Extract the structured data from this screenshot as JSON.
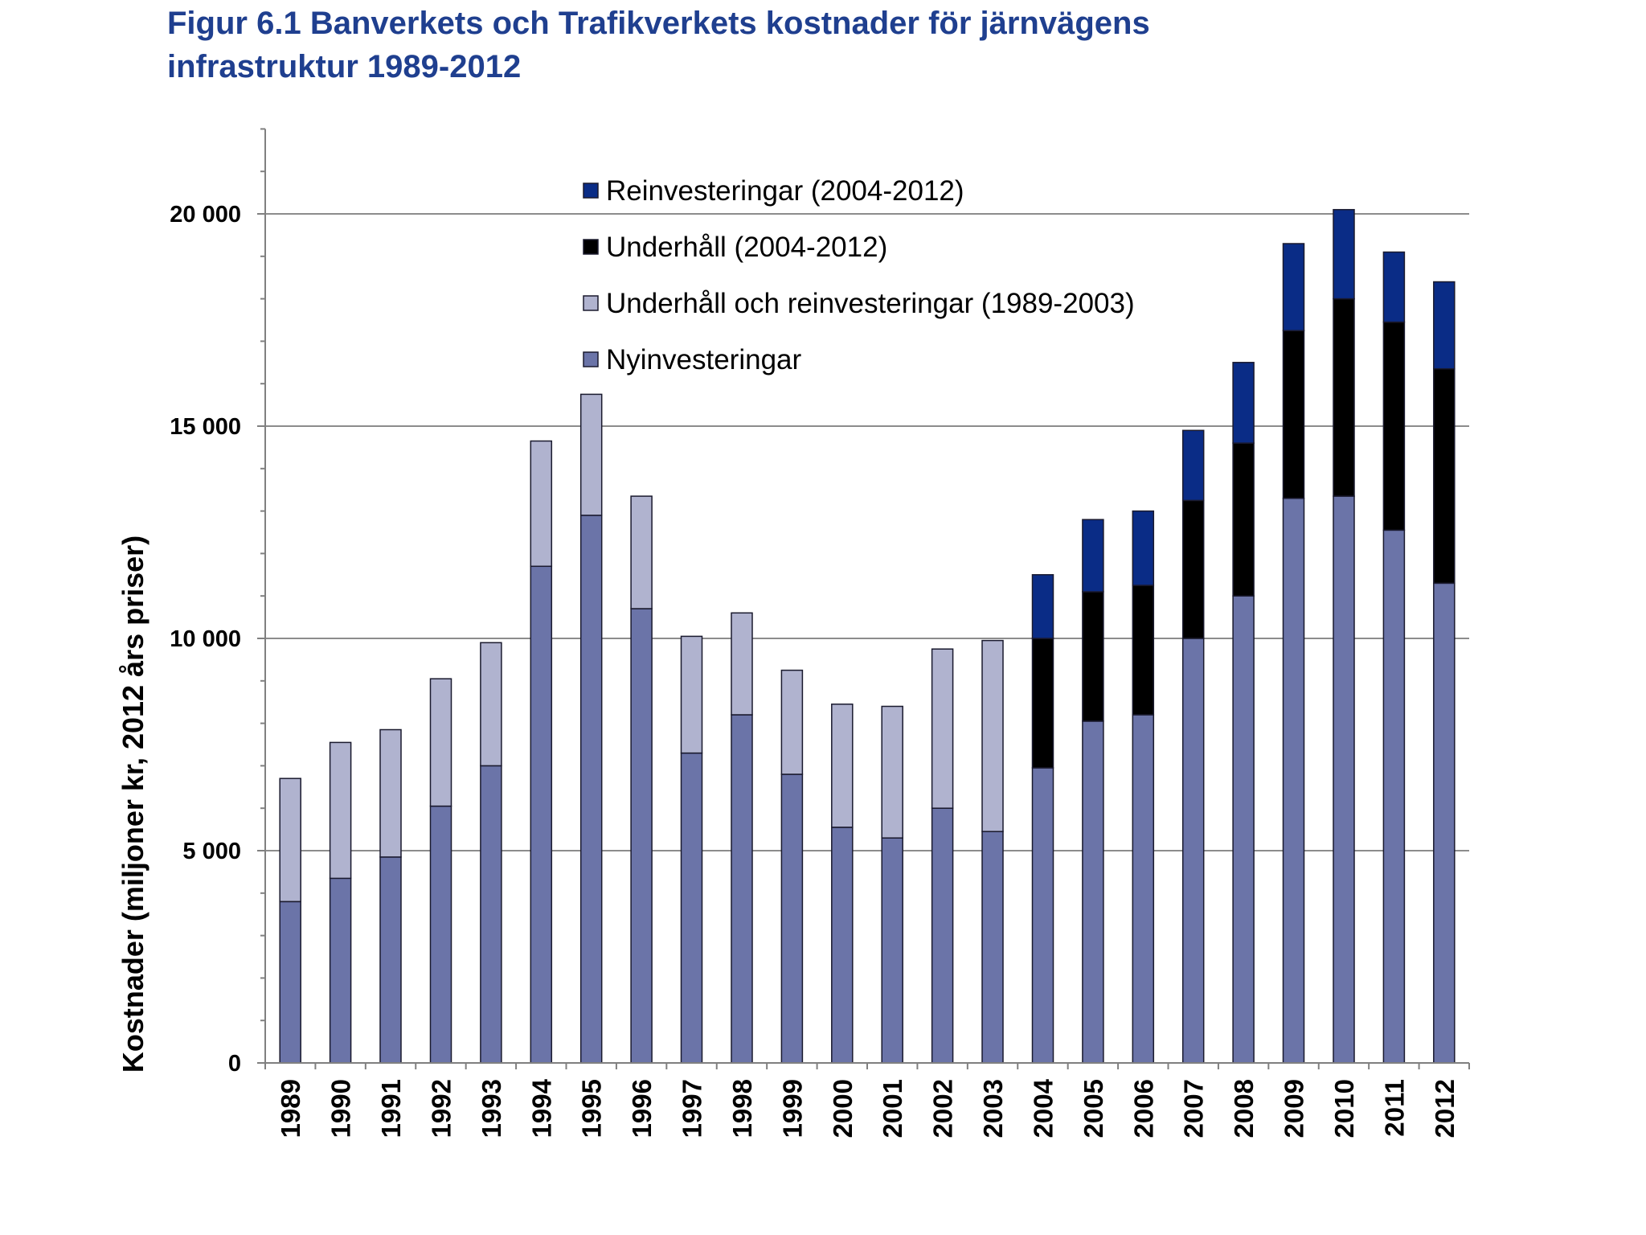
{
  "title": {
    "line1": "Figur 6.1 Banverkets och Trafikverkets kostnader för järnvägens",
    "line2": "infrastruktur 1989-2012"
  },
  "colors": {
    "title": "#1f3f8f",
    "nyinvesteringar": "#6b74a8",
    "underhall_och_reinvesteringar": "#b0b3cf",
    "underhall": "#000000",
    "reinvesteringar": "#0a2c86",
    "gridline": "#8c8c8c",
    "axis": "#808080"
  },
  "chart_data": {
    "type": "bar",
    "stacked": true,
    "ylabel": "Kostnader (miljoner kr, 2012 års priser)",
    "ylim": [
      0,
      22000
    ],
    "yticks": [
      0,
      5000,
      10000,
      15000,
      20000
    ],
    "ytick_labels": [
      "0",
      "5 000",
      "10 000",
      "15 000",
      "20 000"
    ],
    "gridlines": [
      5000,
      10000,
      15000,
      20000
    ],
    "legend_position": "top-center",
    "categories": [
      "1989",
      "1990",
      "1991",
      "1992",
      "1993",
      "1994",
      "1995",
      "1996",
      "1997",
      "1998",
      "1999",
      "2000",
      "2001",
      "2002",
      "2003",
      "2004",
      "2005",
      "2006",
      "2007",
      "2008",
      "2009",
      "2010",
      "2011",
      "2012"
    ],
    "series": [
      {
        "name": "Nyinvesteringar",
        "color_key": "nyinvesteringar",
        "values": [
          3800,
          4350,
          4850,
          6050,
          7000,
          11700,
          12900,
          10700,
          7300,
          8200,
          6800,
          5550,
          5300,
          6000,
          5450,
          6950,
          8050,
          8200,
          10000,
          11000,
          13300,
          13350,
          12550,
          11300
        ]
      },
      {
        "name": "Underhåll och reinvesteringar (1989-2003)",
        "color_key": "underhall_och_reinvesteringar",
        "values": [
          2900,
          3200,
          3000,
          3000,
          2900,
          2950,
          2850,
          2650,
          2750,
          2400,
          2450,
          2900,
          3100,
          3750,
          4500,
          0,
          0,
          0,
          0,
          0,
          0,
          0,
          0,
          0
        ]
      },
      {
        "name": "Underhåll (2004-2012)",
        "color_key": "underhall",
        "values": [
          0,
          0,
          0,
          0,
          0,
          0,
          0,
          0,
          0,
          0,
          0,
          0,
          0,
          0,
          0,
          3050,
          3050,
          3050,
          3250,
          3600,
          3950,
          4650,
          4900,
          5050
        ]
      },
      {
        "name": "Reinvesteringar (2004-2012)",
        "color_key": "reinvesteringar",
        "values": [
          0,
          0,
          0,
          0,
          0,
          0,
          0,
          0,
          0,
          0,
          0,
          0,
          0,
          0,
          0,
          1500,
          1700,
          1750,
          1650,
          1900,
          2050,
          2100,
          1650,
          2050
        ]
      }
    ],
    "legend_order": [
      "Reinvesteringar (2004-2012)",
      "Underhåll (2004-2012)",
      "Underhåll och reinvesteringar (1989-2003)",
      "Nyinvesteringar"
    ]
  }
}
